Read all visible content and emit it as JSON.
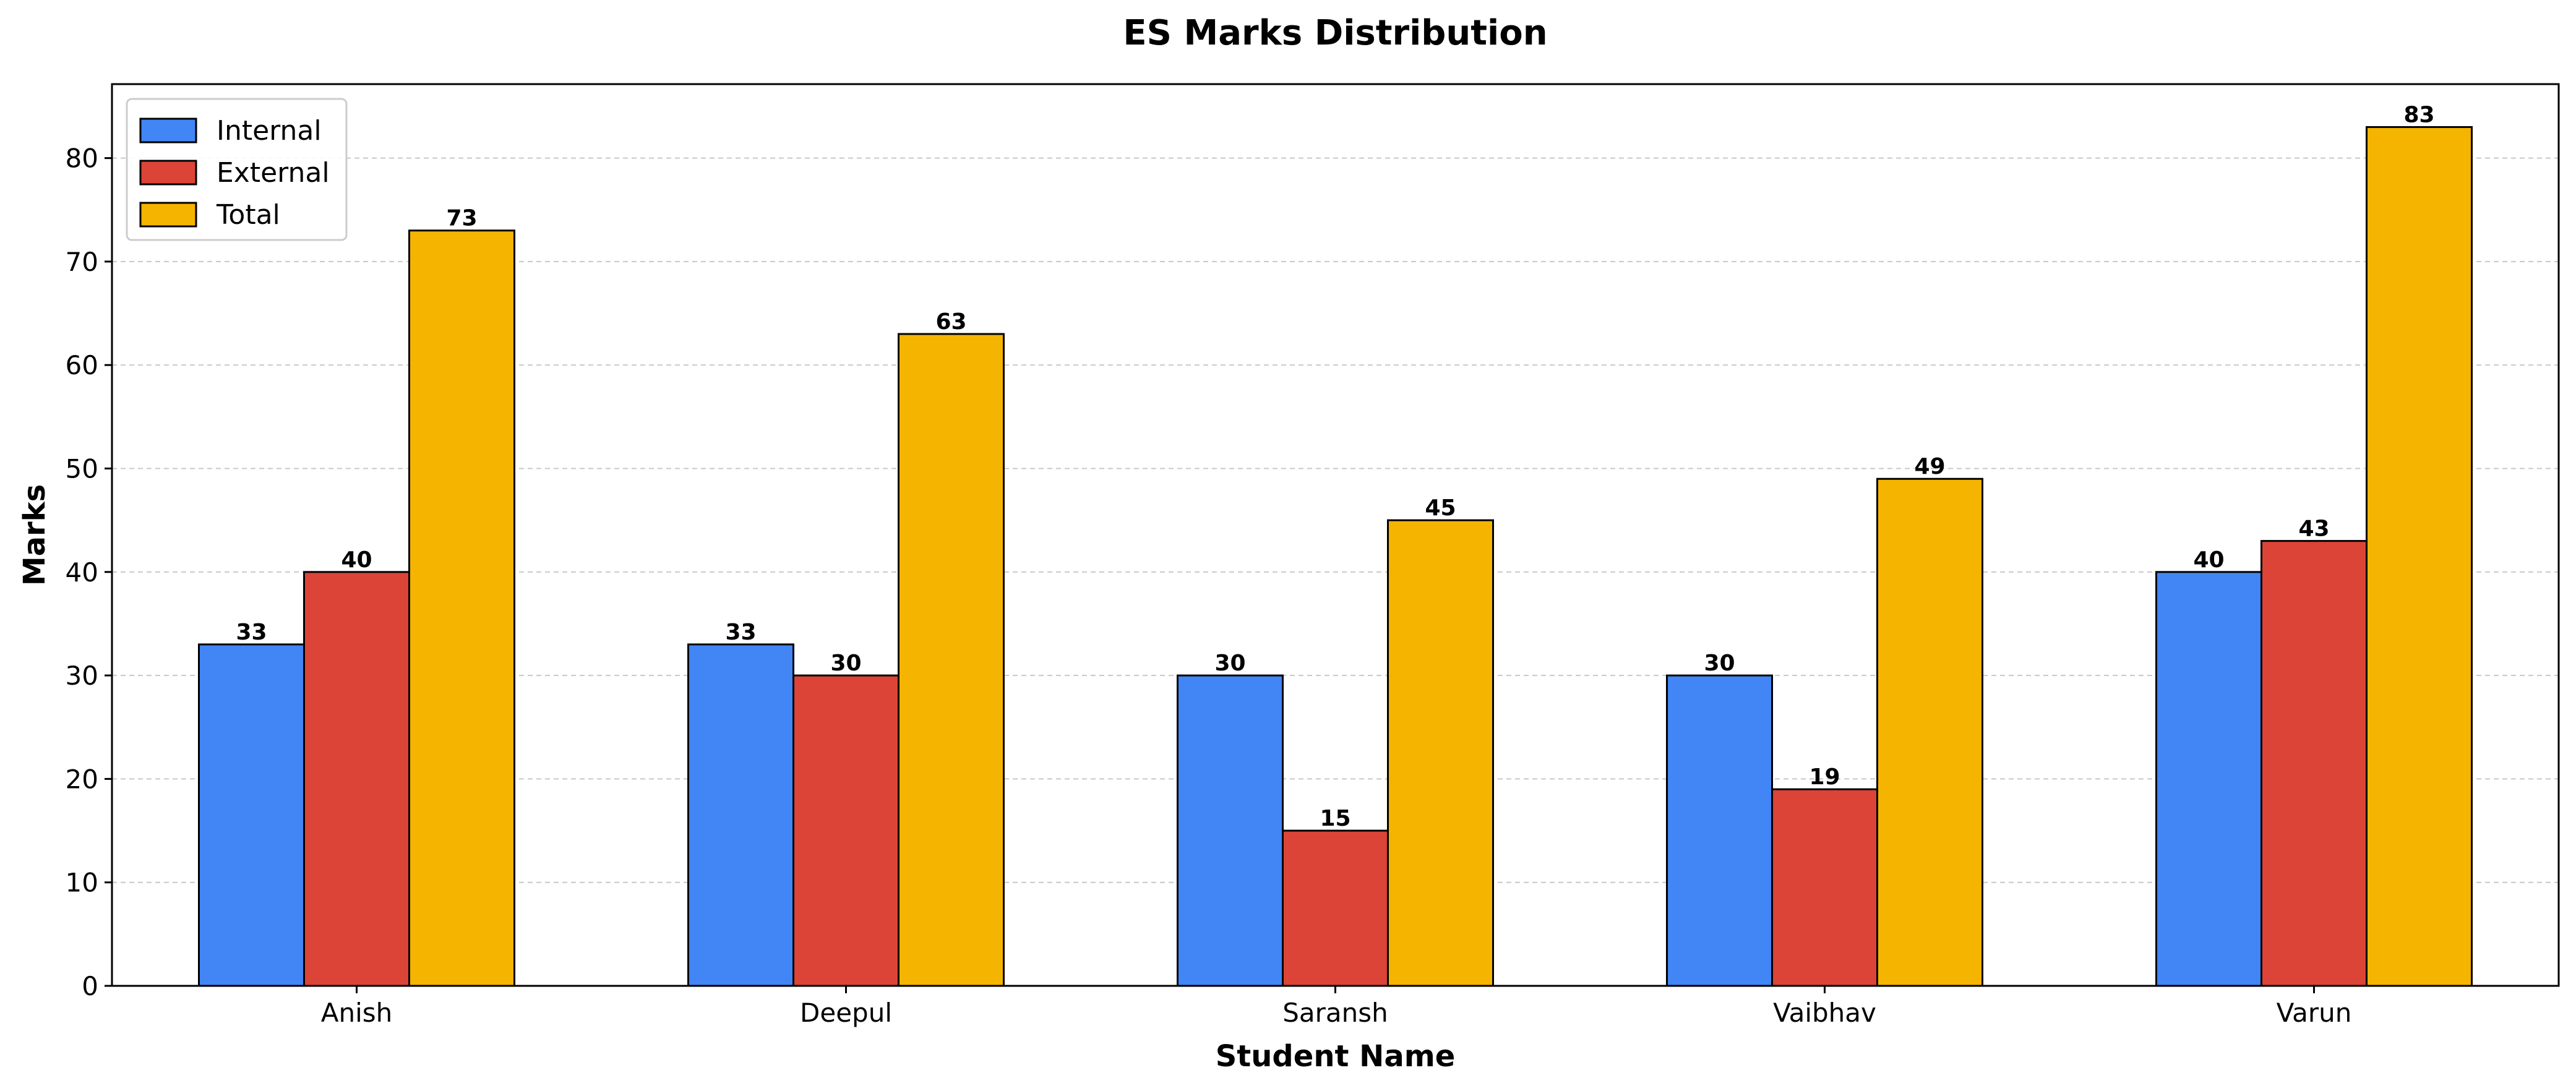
{
  "chart_data": {
    "type": "bar",
    "title": "ES Marks Distribution",
    "xlabel": "Student Name",
    "ylabel": "Marks",
    "categories": [
      "Anish",
      "Deepul",
      "Saransh",
      "Vaibhav",
      "Varun"
    ],
    "series": [
      {
        "name": "Internal",
        "color": "#4285f4",
        "values": [
          33,
          33,
          30,
          30,
          40
        ]
      },
      {
        "name": "External",
        "color": "#db4437",
        "values": [
          40,
          30,
          15,
          19,
          43
        ]
      },
      {
        "name": "Total",
        "color": "#f4b400",
        "values": [
          73,
          63,
          45,
          49,
          83
        ]
      }
    ],
    "ylim": [
      0,
      87.15
    ],
    "yticks": [
      0,
      10,
      20,
      30,
      40,
      50,
      60,
      70,
      80
    ],
    "grid": "y-dashed",
    "legend_position": "top-left",
    "data_labels": true
  }
}
